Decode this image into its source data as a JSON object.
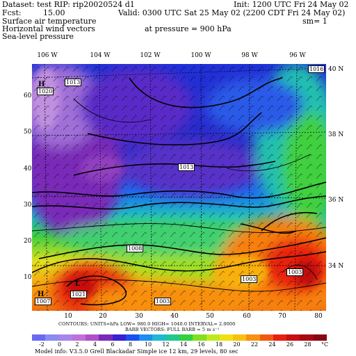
{
  "header": {
    "dataset": "Dataset: test   RIP: rip20020524  d1",
    "init": "Init: 1200 UTC Fri 24 May 02",
    "fcst_label": "Fcst:",
    "fcst_value": "15.00",
    "valid": "Valid: 0300 UTC Sat 25 May 02 (2200 CDT Fri 24 May 02)",
    "field1": "Surface air temperature",
    "field2": "Horizontal wind vectors",
    "field3": "Sea-level pressure",
    "pressure": "at pressure =  900 hPa",
    "sm": "sm= 1"
  },
  "longitudes": [
    "106 W",
    "104 W",
    "102 W",
    "100 W",
    "98 W",
    "96 W"
  ],
  "latitudes": [
    "40 N",
    "38 N",
    "36 N",
    "34 N"
  ],
  "x_ticks": [
    "10",
    "20",
    "30",
    "40",
    "50",
    "60",
    "70",
    "80"
  ],
  "y_ticks": [
    "60",
    "50",
    "40",
    "30",
    "20",
    "10"
  ],
  "map_labels": {
    "h1": "H",
    "h1_val": "1020",
    "b1": "1013",
    "b2": "1016",
    "b3": "1013",
    "b4": "1008",
    "l1": "L",
    "l1_val": "1021",
    "h2": "H",
    "h2_val": "1007",
    "b5": "1003",
    "b6": "1003",
    "b7": "1003"
  },
  "footer": {
    "contours": "CONTOURS:  UNITS=hPa  LOW=  980.0          HIGH=  1040.0          INTERVAL=   2.0000",
    "barbs": "BARB VECTORS:  FULL BARB = 5 m s⁻¹",
    "model": "Model info: V3.5.0   Grell     Blackadar   Simple ice    12 km,  29 levels,   80 sec"
  },
  "colorbar": {
    "unit": "°C",
    "labels": [
      "-2",
      "0",
      "2",
      "4",
      "6",
      "8",
      "10",
      "12",
      "14",
      "16",
      "18",
      "20",
      "22",
      "24",
      "26",
      "28"
    ],
    "colors": [
      "#6a6af0",
      "#8a8af0",
      "#a886e8",
      "#c070d8",
      "#b050c8",
      "#7a2ab8",
      "#3a20d0",
      "#1a50f0",
      "#1a90f0",
      "#20b8d0",
      "#20c890",
      "#30d040",
      "#80e020",
      "#c0e820",
      "#f0e010",
      "#f8c010",
      "#f89010",
      "#f05a10",
      "#e82010",
      "#c81010",
      "#a80810",
      "#880810"
    ]
  }
}
